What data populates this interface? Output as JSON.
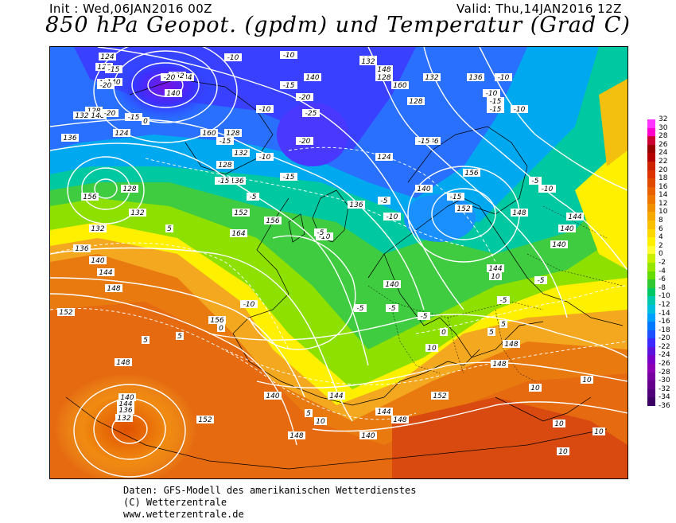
{
  "header": {
    "init": "Init : Wed,06JAN2016 00Z",
    "valid": "Valid: Thu,14JAN2016 12Z",
    "title": "850 hPa Geopot. (gpdm) und Temperatur (Grad C)"
  },
  "legend": {
    "ticks": [
      "32",
      "30",
      "28",
      "26",
      "24",
      "22",
      "20",
      "18",
      "16",
      "14",
      "12",
      "10",
      "8",
      "6",
      "4",
      "2",
      "0",
      "-2",
      "-4",
      "-6",
      "-8",
      "-10",
      "-12",
      "-14",
      "-16",
      "-18",
      "-20",
      "-22",
      "-24",
      "-26",
      "-28",
      "-30",
      "-32",
      "-34",
      "-36"
    ],
    "colors": [
      "#ff33ff",
      "#ff00cc",
      "#cc0033",
      "#990000",
      "#b30000",
      "#cc2200",
      "#dd3300",
      "#e04a00",
      "#e86000",
      "#ee7700",
      "#f09000",
      "#f4a800",
      "#f8c000",
      "#fcd800",
      "#fff000",
      "#ffff33",
      "#c8f000",
      "#96e600",
      "#64dc00",
      "#32c832",
      "#00c864",
      "#00c8aa",
      "#00bede",
      "#00a0ff",
      "#0078ff",
      "#1e50ff",
      "#3c28ff",
      "#5a14dc",
      "#7800c8",
      "#8c00b4",
      "#7800a0",
      "#64008c",
      "#500078",
      "#3c0064"
    ]
  },
  "map": {
    "geopotential_labels": [
      "124",
      "120",
      "116",
      "128",
      "132",
      "136",
      "140",
      "144",
      "148",
      "152",
      "156",
      "160",
      "164",
      "140",
      "136",
      "132",
      "128",
      "124",
      "132",
      "128",
      "136",
      "140",
      "144",
      "148",
      "152",
      "156",
      "160",
      "148",
      "140",
      "136",
      "132",
      "128",
      "124",
      "136",
      "140",
      "144",
      "148",
      "152",
      "156",
      "152",
      "156",
      "148",
      "144",
      "140",
      "132",
      "136",
      "140",
      "128",
      "132",
      "124",
      "128",
      "132",
      "136",
      "140",
      "144",
      "148",
      "152",
      "144",
      "140",
      "148",
      "152",
      "148",
      "144",
      "140",
      "140",
      "148"
    ],
    "temperature_labels": [
      "-15",
      "-20",
      "-20",
      "-20",
      "-15",
      "-15",
      "-10",
      "-10",
      "-10",
      "-15",
      "-20",
      "-25",
      "-20",
      "-15",
      "-10",
      "-15",
      "-10",
      "-5",
      "-5",
      "-10",
      "-10",
      "-15",
      "-5",
      "-5",
      "0",
      "0",
      "5",
      "5",
      "5",
      "10",
      "10",
      "10",
      "10",
      "10",
      "10",
      "10",
      "5",
      "5",
      "-5",
      "-5",
      "-5",
      "-10",
      "-15",
      "-15",
      "-15",
      "-10",
      "-10",
      "-10",
      "-5",
      "-5",
      "0",
      "5",
      "10"
    ]
  },
  "footer": {
    "line1": "Daten: GFS-Modell des amerikanischen Wetterdienstes",
    "line2": "(C) Wetterzentrale",
    "line3": "www.wetterzentrale.de"
  }
}
